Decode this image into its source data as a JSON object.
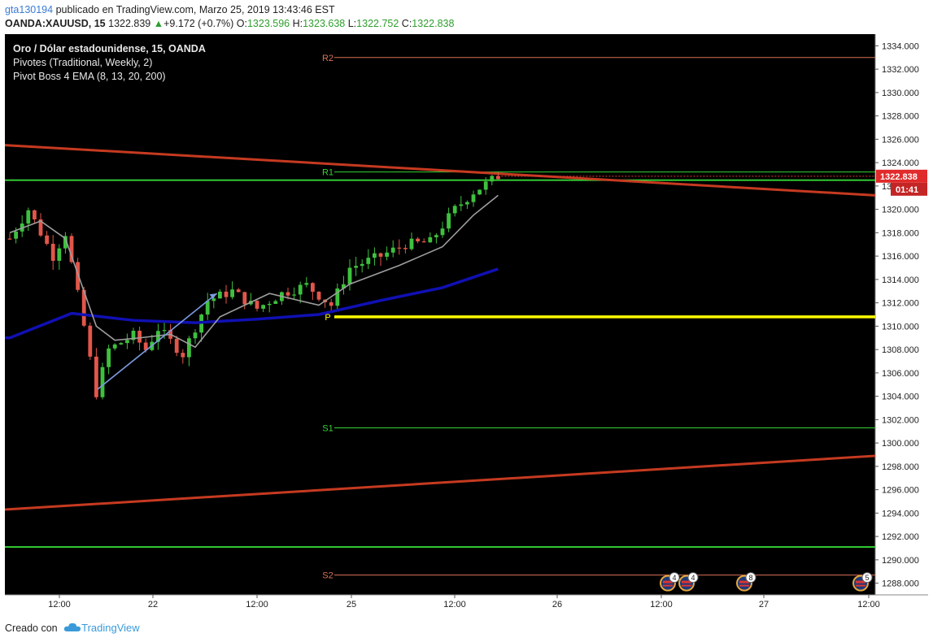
{
  "header": {
    "user": "gta130194",
    "published": "publicado en TradingView.com, Marzo 25, 2019 13:43:46 EST",
    "symbol": "OANDA:XAUUSD, 15",
    "last": "1322.839",
    "change": "+9.172 (+0.7%)",
    "o_label": "O:",
    "o_val": "1323.596",
    "h_label": "H:",
    "h_val": "1323.638",
    "l_label": "L:",
    "l_val": "1322.752",
    "c_label": "C:",
    "c_val": "1322.838"
  },
  "legend": {
    "title": "Oro / Dólar estadounidense, 15, OANDA",
    "ind1": "Pivotes (Traditional, Weekly, 2)",
    "ind2": "Pivot Boss 4 EMA (8, 13, 20, 200)"
  },
  "footer": {
    "created": "Creado con",
    "brand": "TradingView"
  },
  "colors": {
    "background": "#000000",
    "up": "#3ec13e",
    "down": "#e2564a",
    "ema200": "#1010b4",
    "ema_fast": "#9e9e9e",
    "yellow": "#ffff00",
    "green_level": "#35d435",
    "trend": "#c63a20",
    "pivot_red": "#d87355"
  },
  "chart_data": {
    "type": "candlestick",
    "title": "Oro / Dólar estadounidense, 15, OANDA",
    "ylim": [
      1287,
      1335
    ],
    "y_ticks": [
      1288,
      1290,
      1292,
      1294,
      1296,
      1298,
      1300,
      1302,
      1304,
      1306,
      1308,
      1310,
      1312,
      1314,
      1316,
      1318,
      1320,
      1322,
      1324,
      1326,
      1328,
      1330,
      1332,
      1334
    ],
    "x_ticks": [
      "12:00",
      "22",
      "12:00",
      "25",
      "12:00",
      "26",
      "12:00",
      "27",
      "12:00"
    ],
    "last_price_tag": "1322.838",
    "countdown_tag": "01:41",
    "pivot_levels": [
      {
        "name": "R2",
        "value": 1333.0
      },
      {
        "name": "R1",
        "value": 1323.2
      },
      {
        "name": "P",
        "value": 1310.8
      },
      {
        "name": "S1",
        "value": 1301.3
      },
      {
        "name": "S2",
        "value": 1288.7
      }
    ],
    "horizontal_lines": [
      {
        "value": 1322.5,
        "color": "green"
      },
      {
        "value": 1291.1,
        "color": "green"
      }
    ],
    "trendlines": [
      {
        "from": [
          "21 03:00",
          1325.5
        ],
        "to": [
          "27 12:00",
          1321.2
        ]
      },
      {
        "from": [
          "21 03:00",
          1294.3
        ],
        "to": [
          "27 12:00",
          1298.9
        ]
      }
    ],
    "series": [
      {
        "name": "EMA 200",
        "path": [
          [
            1309.0,
            0
          ],
          [
            1311.1,
            10
          ],
          [
            1310.5,
            20
          ],
          [
            1310.3,
            30
          ],
          [
            1310.6,
            40
          ],
          [
            1311.0,
            50
          ],
          [
            1312.2,
            60
          ],
          [
            1313.3,
            70
          ],
          [
            1314.9,
            79
          ]
        ]
      },
      {
        "name": "EMA 20",
        "path": [
          [
            1318.0,
            0
          ],
          [
            1319.0,
            5
          ],
          [
            1317.5,
            9
          ],
          [
            1313.0,
            12
          ],
          [
            1310.0,
            14
          ],
          [
            1308.8,
            17
          ],
          [
            1309.0,
            21
          ],
          [
            1309.3,
            26
          ],
          [
            1308.2,
            30
          ],
          [
            1310.8,
            34
          ],
          [
            1311.8,
            38
          ],
          [
            1312.8,
            42
          ],
          [
            1311.8,
            50
          ],
          [
            1313.6,
            55
          ],
          [
            1315.2,
            63
          ],
          [
            1316.8,
            70
          ],
          [
            1319.5,
            75
          ],
          [
            1321.2,
            79
          ]
        ]
      }
    ],
    "anchors": [
      {
        "bar": 0,
        "value": 1317.5
      },
      {
        "bar": 3,
        "value": 1320.0
      },
      {
        "bar": 7,
        "value": 1316.0
      },
      {
        "bar": 9,
        "value": 1318.0
      },
      {
        "bar": 12,
        "value": 1310.0
      },
      {
        "bar": 14,
        "value": 1304.3
      },
      {
        "bar": 16,
        "value": 1308.0
      },
      {
        "bar": 20,
        "value": 1309.2
      },
      {
        "bar": 22,
        "value": 1308.0
      },
      {
        "bar": 24,
        "value": 1309.8
      },
      {
        "bar": 28,
        "value": 1307.6
      },
      {
        "bar": 32,
        "value": 1312.2
      },
      {
        "bar": 36,
        "value": 1313.0
      },
      {
        "bar": 40,
        "value": 1311.5
      },
      {
        "bar": 44,
        "value": 1312.8
      },
      {
        "bar": 48,
        "value": 1313.5
      },
      {
        "bar": 52,
        "value": 1311.8
      },
      {
        "bar": 55,
        "value": 1315.0
      },
      {
        "bar": 60,
        "value": 1316.0
      },
      {
        "bar": 64,
        "value": 1317.0
      },
      {
        "bar": 68,
        "value": 1317.2
      },
      {
        "bar": 72,
        "value": 1320.0
      },
      {
        "bar": 75,
        "value": 1321.5
      },
      {
        "bar": 79,
        "value": 1322.84
      }
    ],
    "bar_count": 80,
    "event_badges": [
      "4",
      "4",
      "8",
      "5"
    ]
  }
}
